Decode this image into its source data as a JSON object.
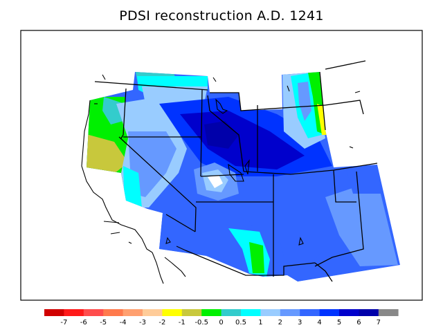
{
  "title": "PDSI reconstruction A.D. 1241",
  "colorbar": {
    "colors": [
      "#d00000",
      "#ff1a1a",
      "#ff4d4d",
      "#ff7a4d",
      "#ffa070",
      "#ffcc99",
      "#ffff00",
      "#c8c83c",
      "#00f000",
      "#33cccc",
      "#00ffff",
      "#99ccff",
      "#6699ff",
      "#3366ff",
      "#0033ff",
      "#0000cc",
      "#0000aa",
      "#888888"
    ],
    "labels": [
      "-7",
      "-6",
      "-5",
      "-4",
      "-3",
      "-2",
      "-1",
      "-0.5",
      "0",
      "0.5",
      "1",
      "2",
      "3",
      "4",
      "5",
      "6",
      "7"
    ]
  }
}
